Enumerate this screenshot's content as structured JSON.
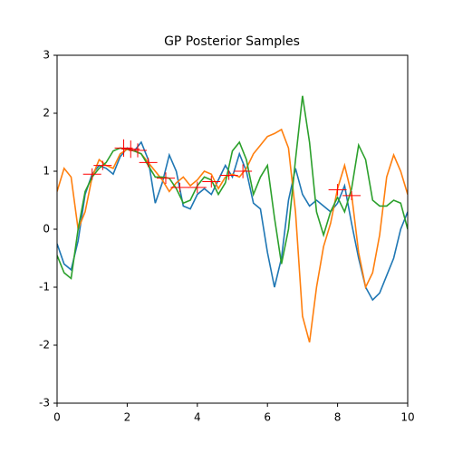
{
  "chart_data": {
    "type": "line",
    "title": "GP Posterior Samples",
    "x": [
      0,
      0.2,
      0.4,
      0.6,
      0.8,
      1.0,
      1.2,
      1.4,
      1.6,
      1.8,
      2.0,
      2.2,
      2.4,
      2.6,
      2.8,
      3.0,
      3.2,
      3.4,
      3.6,
      3.8,
      4.0,
      4.2,
      4.4,
      4.6,
      4.8,
      5.0,
      5.2,
      5.4,
      5.6,
      5.8,
      6.0,
      6.2,
      6.4,
      6.6,
      6.8,
      7.0,
      7.2,
      7.4,
      7.6,
      7.8,
      8.0,
      8.2,
      8.4,
      8.6,
      8.8,
      9.0,
      9.2,
      9.4,
      9.6,
      9.8,
      10.0
    ],
    "series": [
      {
        "color": "#1f77b4",
        "values": [
          -0.25,
          -0.6,
          -0.7,
          -0.2,
          0.6,
          0.95,
          1.1,
          1.05,
          0.95,
          1.25,
          1.4,
          1.35,
          1.5,
          1.2,
          0.45,
          0.8,
          1.28,
          1.0,
          0.4,
          0.35,
          0.6,
          0.7,
          0.6,
          0.85,
          1.1,
          0.9,
          1.3,
          1.0,
          0.45,
          0.35,
          -0.4,
          -1.0,
          -0.5,
          0.5,
          1.05,
          0.6,
          0.4,
          0.5,
          0.4,
          0.3,
          0.45,
          0.75,
          0.1,
          -0.5,
          -1.0,
          -1.22,
          -1.1,
          -0.8,
          -0.5,
          0.0,
          0.3
        ]
      },
      {
        "color": "#ff7f0e",
        "values": [
          0.65,
          1.05,
          0.9,
          0.0,
          0.3,
          0.9,
          1.2,
          1.1,
          1.05,
          1.3,
          1.38,
          1.35,
          1.3,
          1.15,
          1.0,
          0.85,
          0.65,
          0.8,
          0.9,
          0.75,
          0.85,
          1.0,
          0.95,
          0.7,
          0.9,
          0.95,
          0.9,
          1.05,
          1.3,
          1.45,
          1.6,
          1.65,
          1.72,
          1.4,
          0.3,
          -1.5,
          -1.95,
          -1.0,
          -0.3,
          0.1,
          0.7,
          1.1,
          0.6,
          -0.4,
          -1.0,
          -0.75,
          -0.1,
          0.9,
          1.28,
          1.0,
          0.6
        ]
      },
      {
        "color": "#2ca02c",
        "values": [
          -0.45,
          -0.75,
          -0.85,
          0.0,
          0.65,
          0.9,
          1.05,
          1.15,
          1.35,
          1.4,
          1.38,
          1.35,
          1.3,
          1.1,
          0.9,
          0.9,
          0.88,
          0.7,
          0.45,
          0.5,
          0.75,
          0.9,
          0.85,
          0.6,
          0.8,
          1.35,
          1.5,
          1.2,
          0.6,
          0.9,
          1.1,
          0.2,
          -0.6,
          0.0,
          1.2,
          2.3,
          1.5,
          0.3,
          -0.1,
          0.3,
          0.55,
          0.3,
          0.7,
          1.45,
          1.2,
          0.5,
          0.4,
          0.4,
          0.5,
          0.45,
          0.0
        ]
      }
    ],
    "points": {
      "color": "#ff0000",
      "x": [
        1.0,
        1.3,
        1.9,
        2.1,
        2.3,
        2.6,
        3.1,
        3.5,
        4.0,
        4.4,
        4.9,
        5.3,
        8.0,
        8.4
      ],
      "values": [
        0.95,
        1.1,
        1.4,
        1.38,
        1.36,
        1.15,
        0.88,
        0.72,
        0.72,
        0.82,
        0.93,
        1.0,
        0.68,
        0.58
      ],
      "errors": [
        0.1,
        0.08,
        0.15,
        0.15,
        0.12,
        0.08,
        0.1,
        0.08,
        0.1,
        0.1,
        0.08,
        0.12,
        0.1,
        0.08
      ]
    },
    "xlim": [
      0,
      10
    ],
    "xticks": [
      0,
      2,
      4,
      6,
      8,
      10
    ],
    "ylim": [
      -3,
      3
    ],
    "yticks": [
      -3,
      -2,
      -1,
      0,
      1,
      2,
      3
    ]
  }
}
